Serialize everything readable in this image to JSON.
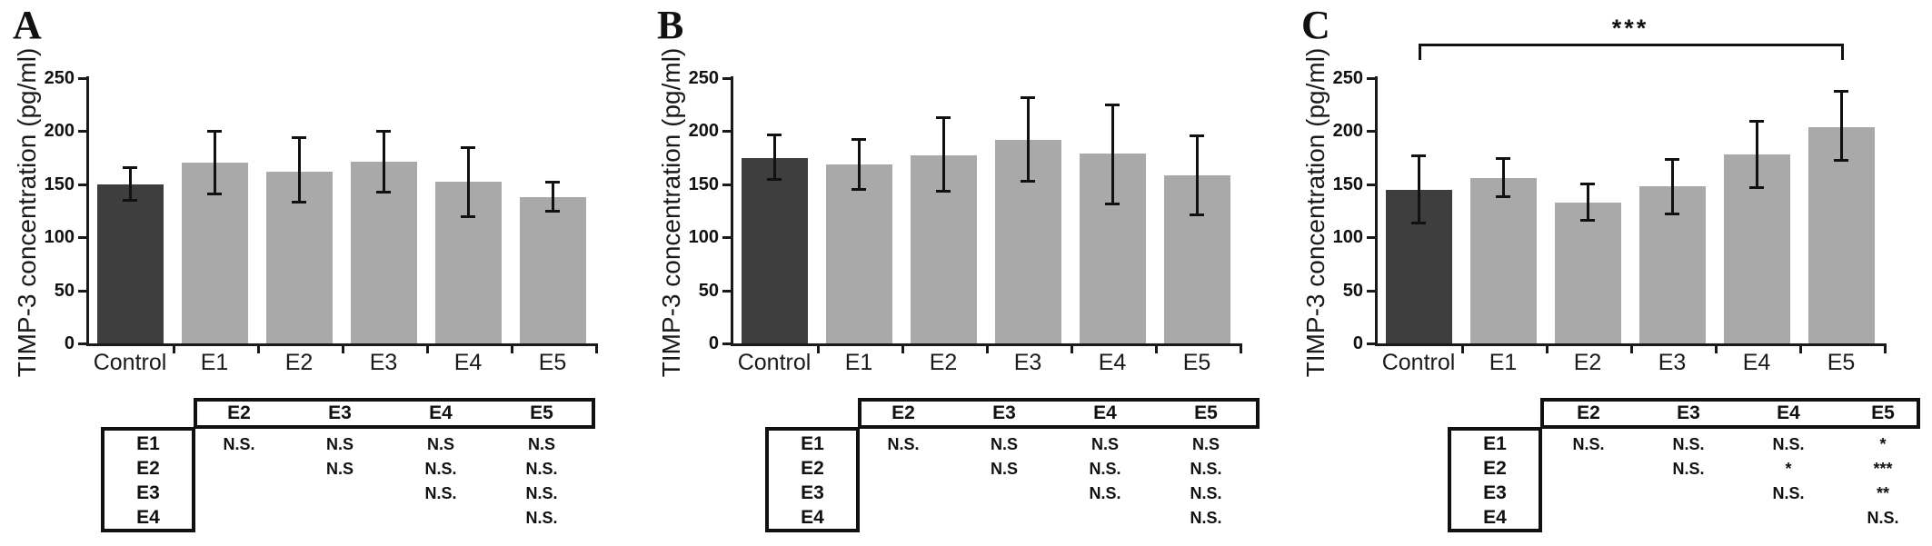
{
  "figure": {
    "ylabel": "TIMP-3 concentration (pg/ml)",
    "categories": [
      "Control",
      "E1",
      "E2",
      "E3",
      "E4",
      "E5"
    ],
    "ytick_labels": [
      "0",
      "50",
      "100",
      "150",
      "200",
      "250"
    ],
    "colors": {
      "control_bar": "#3e3e3e",
      "treatment_bar": "#a9a9a9",
      "ink": "#111111",
      "background": "#ffffff"
    }
  },
  "chart_data": [
    {
      "type": "bar",
      "panel_label": "A",
      "title": "",
      "xlabel": "",
      "ylabel": "TIMP-3 concentration (pg/ml)",
      "ylim": [
        0,
        250
      ],
      "yticks": [
        0,
        50,
        100,
        150,
        200,
        250
      ],
      "grid": false,
      "legend": "none",
      "categories": [
        "Control",
        "E1",
        "E2",
        "E3",
        "E4",
        "E5"
      ],
      "values": [
        150,
        170,
        162,
        171,
        152,
        138
      ],
      "error_low": [
        134,
        140,
        133,
        142,
        119,
        124
      ],
      "error_high": [
        166,
        200,
        194,
        200,
        185,
        152
      ],
      "significance_bracket": null,
      "sig_table": {
        "col_headers": [
          "E2",
          "E3",
          "E4",
          "E5"
        ],
        "row_headers": [
          "E1",
          "E2",
          "E3",
          "E4"
        ],
        "rows": [
          [
            "N.S.",
            "N.S",
            "N.S",
            "N.S"
          ],
          [
            "",
            "N.S",
            "N.S.",
            "N.S."
          ],
          [
            "",
            "",
            "N.S.",
            "N.S."
          ],
          [
            "",
            "",
            "",
            "N.S."
          ]
        ]
      }
    },
    {
      "type": "bar",
      "panel_label": "B",
      "title": "",
      "xlabel": "",
      "ylabel": "TIMP-3 concentration (pg/ml)",
      "ylim": [
        0,
        250
      ],
      "yticks": [
        0,
        50,
        100,
        150,
        200,
        250
      ],
      "grid": false,
      "legend": "none",
      "categories": [
        "Control",
        "E1",
        "E2",
        "E3",
        "E4",
        "E5"
      ],
      "values": [
        175,
        169,
        177,
        192,
        179,
        158
      ],
      "error_low": [
        154,
        145,
        143,
        152,
        131,
        121
      ],
      "error_high": [
        197,
        193,
        213,
        232,
        225,
        196
      ],
      "significance_bracket": null,
      "sig_table": {
        "col_headers": [
          "E2",
          "E3",
          "E4",
          "E5"
        ],
        "row_headers": [
          "E1",
          "E2",
          "E3",
          "E4"
        ],
        "rows": [
          [
            "N.S.",
            "N.S",
            "N.S",
            "N.S"
          ],
          [
            "",
            "N.S",
            "N.S.",
            "N.S."
          ],
          [
            "",
            "",
            "N.S.",
            "N.S."
          ],
          [
            "",
            "",
            "",
            "N.S."
          ]
        ]
      }
    },
    {
      "type": "bar",
      "panel_label": "C",
      "title": "",
      "xlabel": "",
      "ylabel": "TIMP-3 concentration (pg/ml)",
      "ylim": [
        0,
        250
      ],
      "yticks": [
        0,
        50,
        100,
        150,
        200,
        250
      ],
      "grid": false,
      "legend": "none",
      "categories": [
        "Control",
        "E1",
        "E2",
        "E3",
        "E4",
        "E5"
      ],
      "values": [
        145,
        156,
        133,
        148,
        178,
        204
      ],
      "error_low": [
        113,
        138,
        116,
        122,
        146,
        172
      ],
      "error_high": [
        177,
        175,
        151,
        174,
        210,
        238
      ],
      "significance_bracket": {
        "from": "Control",
        "to": "E5",
        "label": "***"
      },
      "sig_table": {
        "col_headers": [
          "E2",
          "E3",
          "E4",
          "E5"
        ],
        "row_headers": [
          "E1",
          "E2",
          "E3",
          "E4"
        ],
        "rows": [
          [
            "N.S.",
            "N.S.",
            "N.S.",
            "*"
          ],
          [
            "",
            "N.S.",
            "*",
            "***"
          ],
          [
            "",
            "",
            "N.S.",
            "**"
          ],
          [
            "",
            "",
            "",
            "N.S."
          ]
        ]
      }
    }
  ]
}
